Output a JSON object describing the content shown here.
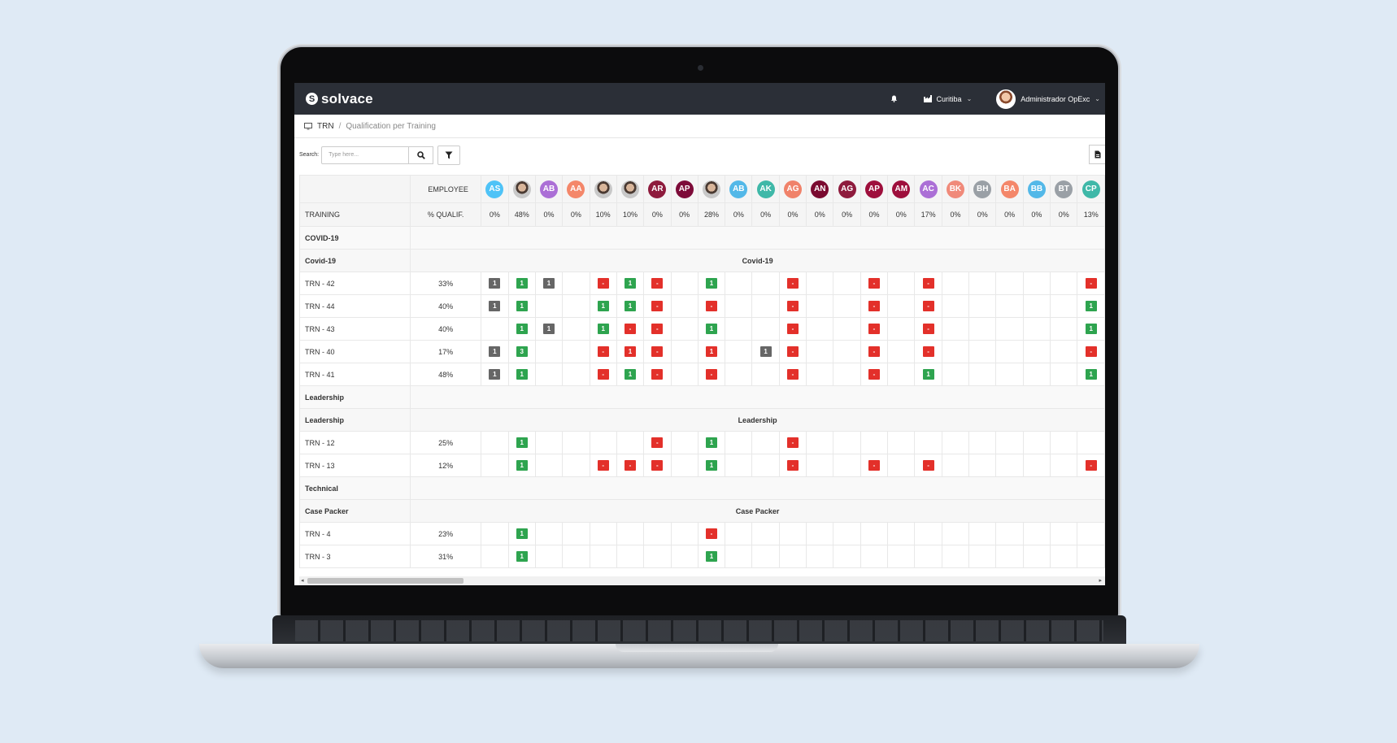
{
  "app": {
    "logo_mark": "S",
    "logo_text": "solvace",
    "site": "Curitiba",
    "user": "Administrador OpExc",
    "chevron": "⌄"
  },
  "breadcrumb": {
    "root": "TRN",
    "separator": "/",
    "current": "Qualification per Training"
  },
  "toolbar": {
    "search_label": "Search:",
    "search_placeholder": "Type here..."
  },
  "icons": [
    "bell-icon",
    "factory-icon",
    "chevron-down-icon",
    "monitor-icon",
    "search-icon",
    "filter-icon",
    "export-icon"
  ],
  "matrix": {
    "employee_header": "EMPLOYEE",
    "training_header": "TRAINING",
    "qualif_header": "% QUALIF.",
    "employees": [
      {
        "initials": "AS",
        "color": "#4fc3f7",
        "pct": "0%"
      },
      {
        "initials": "",
        "color": "photo",
        "pct": "48%"
      },
      {
        "initials": "AB",
        "color": "#ab6fd6",
        "pct": "0%"
      },
      {
        "initials": "AA",
        "color": "#f4876a",
        "pct": "0%"
      },
      {
        "initials": "",
        "color": "photo",
        "pct": "10%"
      },
      {
        "initials": "",
        "color": "photo",
        "pct": "10%"
      },
      {
        "initials": "AR",
        "color": "#8e1b3d",
        "pct": "0%"
      },
      {
        "initials": "AP",
        "color": "#7d0b39",
        "pct": "0%"
      },
      {
        "initials": "",
        "color": "photo",
        "pct": "28%"
      },
      {
        "initials": "AB",
        "color": "#53b8e8",
        "pct": "0%"
      },
      {
        "initials": "AK",
        "color": "#3fb8a8",
        "pct": "0%"
      },
      {
        "initials": "AG",
        "color": "#f0826a",
        "pct": "0%"
      },
      {
        "initials": "AN",
        "color": "#7a0a30",
        "pct": "0%"
      },
      {
        "initials": "AG",
        "color": "#8e1b3d",
        "pct": "0%"
      },
      {
        "initials": "AP",
        "color": "#9e0f3c",
        "pct": "0%"
      },
      {
        "initials": "AM",
        "color": "#9e0f3c",
        "pct": "0%"
      },
      {
        "initials": "AC",
        "color": "#ab6fd6",
        "pct": "17%"
      },
      {
        "initials": "BK",
        "color": "#f08a7a",
        "pct": "0%"
      },
      {
        "initials": "BH",
        "color": "#9aa0a6",
        "pct": "0%"
      },
      {
        "initials": "BA",
        "color": "#f4876a",
        "pct": "0%"
      },
      {
        "initials": "BB",
        "color": "#53b8e8",
        "pct": "0%"
      },
      {
        "initials": "BT",
        "color": "#9aa0a6",
        "pct": "0%"
      },
      {
        "initials": "CP",
        "color": "#3fb8a8",
        "pct": "13%"
      }
    ],
    "rows": [
      {
        "type": "category",
        "label": "COVID-19"
      },
      {
        "type": "subgroup",
        "label": "Covid-19",
        "center": "Covid-19"
      },
      {
        "type": "training",
        "label": "TRN - 42",
        "pct": "33%",
        "cells": [
          "g1",
          "G1",
          "g1",
          "",
          "R-",
          "G1",
          "R-",
          "",
          "G1",
          "",
          "",
          "R-",
          "",
          "",
          "R-",
          "",
          "R-",
          "",
          "",
          "",
          "",
          "",
          "R-"
        ]
      },
      {
        "type": "training",
        "label": "TRN - 44",
        "pct": "40%",
        "cells": [
          "g1",
          "G1",
          "",
          "",
          "G1",
          "G1",
          "R-",
          "",
          "R-",
          "",
          "",
          "R-",
          "",
          "",
          "R-",
          "",
          "R-",
          "",
          "",
          "",
          "",
          "",
          "G1"
        ]
      },
      {
        "type": "training",
        "label": "TRN - 43",
        "pct": "40%",
        "cells": [
          "",
          "G1",
          "g1",
          "",
          "G1",
          "R-",
          "R-",
          "",
          "G1",
          "",
          "",
          "R-",
          "",
          "",
          "R-",
          "",
          "R-",
          "",
          "",
          "",
          "",
          "",
          "G1"
        ]
      },
      {
        "type": "training",
        "label": "TRN - 40",
        "pct": "17%",
        "cells": [
          "g1",
          "G3",
          "",
          "",
          "R-",
          "R1",
          "R-",
          "",
          "R1",
          "",
          "g1",
          "R-",
          "",
          "",
          "R-",
          "",
          "R-",
          "",
          "",
          "",
          "",
          "",
          "R-"
        ]
      },
      {
        "type": "training",
        "label": "TRN - 41",
        "pct": "48%",
        "cells": [
          "g1",
          "G1",
          "",
          "",
          "R-",
          "G1",
          "R-",
          "",
          "R-",
          "",
          "",
          "R-",
          "",
          "",
          "R-",
          "",
          "G1",
          "",
          "",
          "",
          "",
          "",
          "G1"
        ]
      },
      {
        "type": "category",
        "label": "Leadership"
      },
      {
        "type": "subgroup",
        "label": "Leadership",
        "center": "Leadership"
      },
      {
        "type": "training",
        "label": "TRN - 12",
        "pct": "25%",
        "cells": [
          "",
          "G1",
          "",
          "",
          "",
          "",
          "R-",
          "",
          "G1",
          "",
          "",
          "R-",
          "",
          "",
          "",
          "",
          "",
          "",
          "",
          "",
          "",
          "",
          ""
        ]
      },
      {
        "type": "training",
        "label": "TRN - 13",
        "pct": "12%",
        "cells": [
          "",
          "G1",
          "",
          "",
          "R-",
          "R-",
          "R-",
          "",
          "G1",
          "",
          "",
          "R-",
          "",
          "",
          "R-",
          "",
          "R-",
          "",
          "",
          "",
          "",
          "",
          "R-"
        ]
      },
      {
        "type": "category",
        "label": "Technical"
      },
      {
        "type": "subgroup",
        "label": "Case Packer",
        "center": "Case Packer"
      },
      {
        "type": "training",
        "label": "TRN - 4",
        "pct": "23%",
        "cells": [
          "",
          "G1",
          "",
          "",
          "",
          "",
          "",
          "",
          "R-",
          "",
          "",
          "",
          "",
          "",
          "",
          "",
          "",
          "",
          "",
          "",
          "",
          "",
          ""
        ]
      },
      {
        "type": "training",
        "label": "TRN - 3",
        "pct": "31%",
        "cells": [
          "",
          "G1",
          "",
          "",
          "",
          "",
          "",
          "",
          "G1",
          "",
          "",
          "",
          "",
          "",
          "",
          "",
          "",
          "",
          "",
          "",
          "",
          "",
          ""
        ]
      }
    ]
  },
  "scrollbar": {
    "left": "◂",
    "right": "▸"
  }
}
